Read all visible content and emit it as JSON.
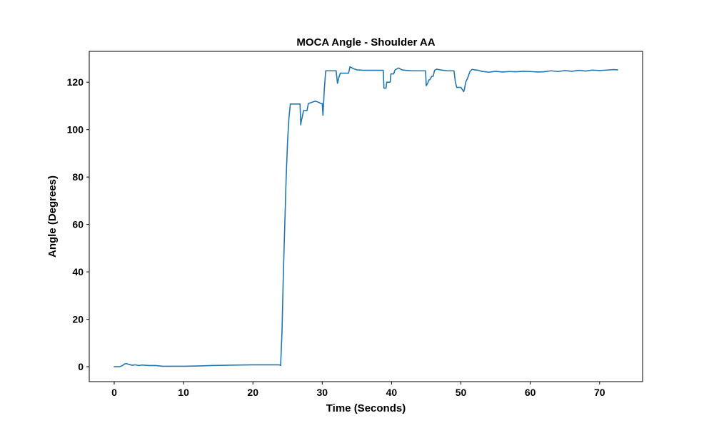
{
  "chart_data": {
    "type": "line",
    "title": "MOCA Angle - Shoulder AA",
    "xlabel": "Time (Seconds)",
    "ylabel": "Angle (Degrees)",
    "xlim": [
      -3.6,
      76.2
    ],
    "ylim": [
      -6.3,
      133
    ],
    "xticks": [
      0,
      10,
      20,
      30,
      40,
      50,
      60,
      70
    ],
    "yticks": [
      0,
      20,
      40,
      60,
      80,
      100,
      120
    ],
    "grid": false,
    "legend": "none",
    "series": [
      {
        "color": "#1f77b4",
        "x": [
          0,
          0.8,
          1.2,
          1.5,
          1.8,
          2.2,
          2.6,
          3.0,
          3.5,
          4.0,
          5.0,
          6.0,
          7.0,
          8.0,
          10.0,
          12.0,
          14.0,
          16.0,
          18.0,
          20.0,
          22.0,
          23.8,
          24.0,
          24.2,
          24.4,
          24.6,
          24.8,
          25.0,
          25.2,
          25.4,
          25.6,
          25.8,
          26.0,
          26.5,
          26.8,
          26.9,
          27.0,
          27.1,
          27.3,
          27.5,
          27.8,
          28.0,
          28.5,
          29.0,
          29.5,
          29.8,
          30.0,
          30.1,
          30.3,
          30.5,
          31.0,
          31.5,
          32.0,
          32.2,
          32.4,
          32.6,
          33.0,
          33.5,
          33.8,
          34.0,
          34.5,
          35.0,
          36.0,
          37.0,
          38.0,
          38.8,
          38.9,
          39.2,
          39.3,
          39.8,
          39.9,
          40.3,
          40.5,
          41.0,
          41.5,
          42.0,
          43.0,
          44.0,
          44.9,
          45.0,
          45.2,
          45.4,
          45.5,
          45.8,
          46.0,
          46.2,
          46.5,
          47.0,
          47.5,
          48.0,
          48.5,
          49.0,
          49.2,
          49.4,
          50.0,
          50.4,
          50.5,
          50.7,
          51.0,
          51.3,
          51.6,
          52.0,
          52.5,
          53.0,
          54.0,
          55.0,
          56.0,
          57.0,
          58.0,
          59.0,
          60.0,
          61.0,
          62.0,
          63.0,
          64.0,
          65.0,
          66.0,
          67.0,
          68.0,
          69.0,
          70.0,
          71.0,
          72.0,
          72.6
        ],
        "y": [
          0,
          0,
          0.5,
          1.2,
          1.3,
          0.9,
          0.6,
          0.8,
          0.5,
          0.7,
          0.5,
          0.5,
          0.2,
          0.2,
          0.2,
          0.3,
          0.5,
          0.6,
          0.7,
          0.8,
          0.8,
          0.8,
          0.5,
          15,
          40,
          60,
          80,
          95,
          105,
          110.8,
          110.8,
          110.8,
          110.8,
          110.8,
          110.8,
          102,
          104,
          105,
          108,
          108,
          108,
          111,
          111.5,
          112,
          111.5,
          111,
          111,
          106,
          117,
          124.8,
          124.8,
          124.8,
          124.8,
          119.5,
          122,
          123.8,
          123.8,
          123.8,
          123.8,
          126.5,
          125.7,
          125.2,
          125,
          125,
          125,
          125,
          117.5,
          117.5,
          120,
          120,
          123.5,
          123.5,
          125.2,
          126,
          125.2,
          125,
          124.8,
          124.8,
          124.8,
          118.5,
          119.5,
          121,
          121,
          122.5,
          122.5,
          125,
          125.5,
          125.2,
          125,
          124.8,
          124.8,
          124.8,
          120,
          117.8,
          117.8,
          116,
          117,
          120,
          122,
          124.5,
          125.4,
          125.2,
          125,
          124.6,
          124.2,
          124.6,
          124.3,
          124.5,
          124.4,
          124.6,
          124.5,
          124.3,
          124.4,
          124.8,
          124.5,
          124.9,
          124.6,
          125,
          124.7,
          125.1,
          124.9,
          125.1,
          125.3,
          125.2
        ]
      }
    ]
  }
}
